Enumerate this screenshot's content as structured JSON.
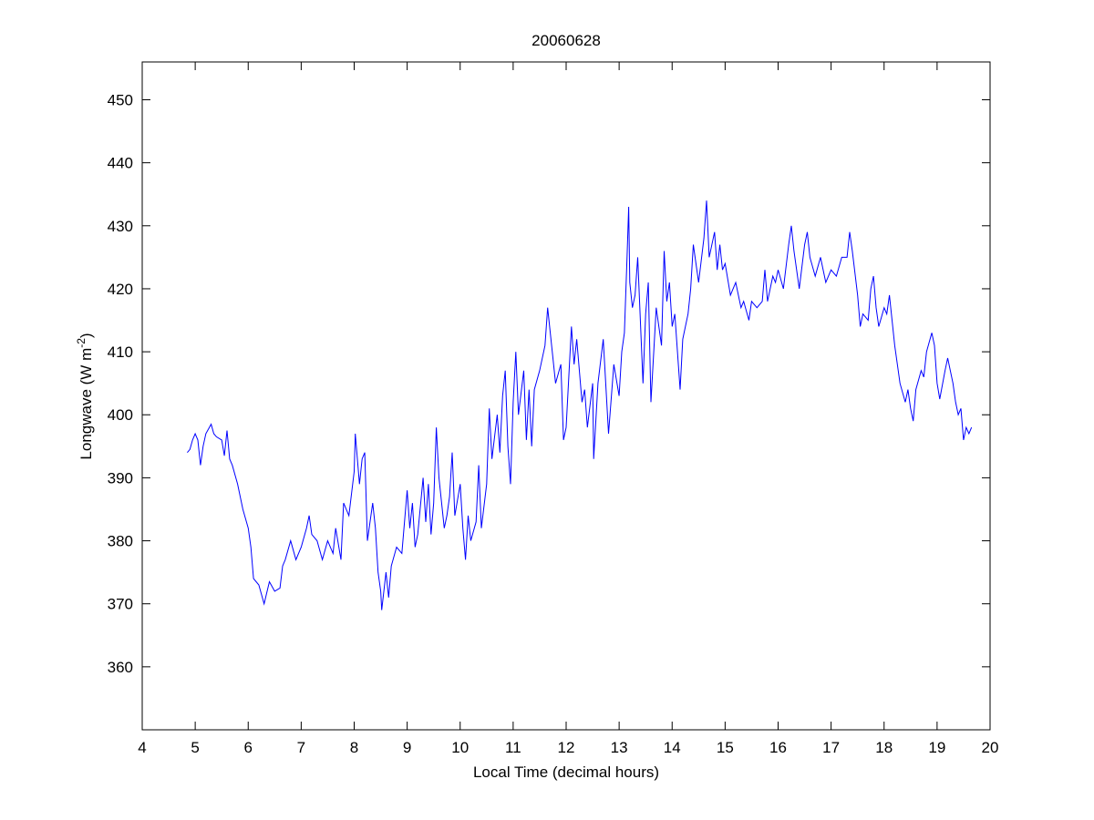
{
  "chart_data": {
    "type": "line",
    "title": "20060628",
    "xlabel": "Local Time (decimal hours)",
    "ylabel": {
      "main": "Longwave (W m",
      "sup": "-2",
      "close": ")"
    },
    "xlim": [
      4,
      20
    ],
    "ylim": [
      350,
      456
    ],
    "xticks": [
      4,
      5,
      6,
      7,
      8,
      9,
      10,
      11,
      12,
      13,
      14,
      15,
      16,
      17,
      18,
      19,
      20
    ],
    "yticks": [
      360,
      370,
      380,
      390,
      400,
      410,
      420,
      430,
      440,
      450
    ],
    "grid": false,
    "line_color": "#0000ff",
    "series": [
      {
        "name": "Longwave",
        "x": [
          4.85,
          4.9,
          4.95,
          5.0,
          5.05,
          5.1,
          5.15,
          5.2,
          5.3,
          5.35,
          5.4,
          5.5,
          5.55,
          5.6,
          5.65,
          5.7,
          5.8,
          5.9,
          6.0,
          6.05,
          6.1,
          6.2,
          6.3,
          6.4,
          6.5,
          6.6,
          6.65,
          6.7,
          6.8,
          6.9,
          7.0,
          7.1,
          7.15,
          7.2,
          7.3,
          7.4,
          7.5,
          7.6,
          7.65,
          7.75,
          7.8,
          7.9,
          8.0,
          8.02,
          8.1,
          8.15,
          8.2,
          8.25,
          8.35,
          8.4,
          8.45,
          8.5,
          8.52,
          8.6,
          8.65,
          8.7,
          8.8,
          8.9,
          9.0,
          9.05,
          9.1,
          9.15,
          9.2,
          9.3,
          9.35,
          9.4,
          9.45,
          9.5,
          9.55,
          9.6,
          9.7,
          9.75,
          9.8,
          9.85,
          9.9,
          10.0,
          10.05,
          10.1,
          10.15,
          10.2,
          10.3,
          10.35,
          10.4,
          10.5,
          10.55,
          10.6,
          10.7,
          10.75,
          10.8,
          10.85,
          10.9,
          10.95,
          11.0,
          11.05,
          11.1,
          11.2,
          11.25,
          11.3,
          11.35,
          11.4,
          11.5,
          11.6,
          11.65,
          11.7,
          11.8,
          11.9,
          11.95,
          12.0,
          12.1,
          12.15,
          12.2,
          12.3,
          12.35,
          12.4,
          12.5,
          12.52,
          12.6,
          12.7,
          12.8,
          12.9,
          13.0,
          13.05,
          13.1,
          13.15,
          13.18,
          13.2,
          13.25,
          13.3,
          13.35,
          13.45,
          13.5,
          13.55,
          13.6,
          13.7,
          13.8,
          13.85,
          13.9,
          13.95,
          14.0,
          14.05,
          14.1,
          14.15,
          14.2,
          14.3,
          14.35,
          14.4,
          14.5,
          14.6,
          14.65,
          14.7,
          14.8,
          14.85,
          14.9,
          14.95,
          15.0,
          15.1,
          15.2,
          15.3,
          15.35,
          15.45,
          15.5,
          15.6,
          15.7,
          15.75,
          15.8,
          15.9,
          15.95,
          16.0,
          16.1,
          16.2,
          16.25,
          16.3,
          16.4,
          16.5,
          16.55,
          16.6,
          16.7,
          16.8,
          16.9,
          17.0,
          17.1,
          17.2,
          17.3,
          17.35,
          17.4,
          17.5,
          17.55,
          17.6,
          17.7,
          17.75,
          17.8,
          17.85,
          17.9,
          18.0,
          18.05,
          18.1,
          18.2,
          18.3,
          18.4,
          18.45,
          18.5,
          18.55,
          18.6,
          18.7,
          18.75,
          18.8,
          18.9,
          18.95,
          19.0,
          19.05,
          19.15,
          19.2,
          19.3,
          19.35,
          19.4,
          19.45,
          19.5,
          19.55,
          19.6,
          19.65
        ],
        "y": [
          394,
          394.5,
          396,
          397,
          396,
          392,
          395,
          397,
          398.5,
          397,
          396.5,
          396,
          393.5,
          397.5,
          393,
          392,
          389,
          385,
          382,
          379,
          374,
          373,
          370,
          373.5,
          372,
          372.5,
          376,
          377,
          380,
          377,
          379,
          382,
          384,
          381,
          380,
          377,
          380,
          378,
          382,
          377,
          386,
          384,
          391,
          397,
          389,
          393,
          394,
          380,
          386,
          382,
          375,
          372,
          369,
          375,
          371,
          376,
          379,
          378,
          388,
          382,
          386,
          379,
          381,
          390,
          383,
          389,
          381,
          386,
          398,
          390,
          382,
          384,
          387,
          394,
          384,
          389,
          382,
          377,
          384,
          380,
          383,
          392,
          382,
          389,
          401,
          393,
          400,
          394,
          403,
          407,
          395,
          389,
          402,
          410,
          400,
          407,
          396,
          404,
          395,
          404,
          407,
          411,
          417,
          413,
          405,
          408,
          396,
          398,
          414,
          408,
          412,
          402,
          404,
          398,
          405,
          393,
          405,
          412,
          397,
          408,
          403,
          410,
          413,
          425,
          433,
          421,
          417,
          419,
          425,
          405,
          416,
          421,
          402,
          417,
          411,
          426,
          418,
          421,
          414,
          416,
          410,
          404,
          412,
          416,
          420,
          427,
          421,
          428,
          434,
          425,
          429,
          423,
          427,
          423,
          424,
          419,
          421,
          417,
          418,
          415,
          418,
          417,
          418,
          423,
          418,
          422,
          421,
          423,
          420,
          427,
          430,
          426,
          420,
          427,
          429,
          425,
          422,
          425,
          421,
          423,
          422,
          425,
          425,
          429,
          426,
          419,
          414,
          416,
          415,
          420,
          422,
          417,
          414,
          417,
          416,
          419,
          411,
          405,
          402,
          404,
          401,
          399,
          404,
          407,
          406,
          410,
          413,
          411,
          405,
          402.5,
          407,
          409,
          405,
          402,
          400,
          401,
          396,
          398,
          397,
          398
        ]
      }
    ]
  }
}
